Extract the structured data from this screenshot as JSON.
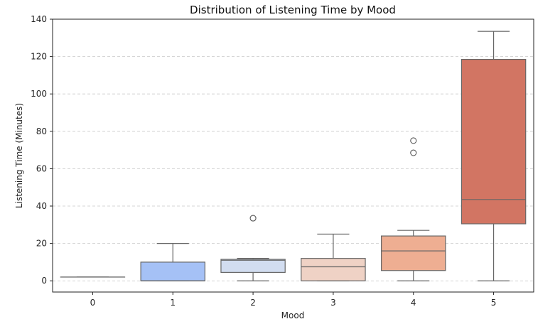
{
  "chart_data": {
    "type": "box",
    "title": "Distribution of Listening Time by Mood",
    "xlabel": "Mood",
    "ylabel": "Listening Time (Minutes)",
    "ylim": [
      -6,
      140
    ],
    "yticks": [
      0,
      20,
      40,
      60,
      80,
      100,
      120,
      140
    ],
    "grid": "y-dashed",
    "categories": [
      "0",
      "1",
      "2",
      "3",
      "4",
      "5"
    ],
    "boxes": [
      {
        "category": "0",
        "whisker_low": 2,
        "q1": 2,
        "median": 2,
        "q3": 2,
        "whisker_high": 2,
        "outliers": [],
        "color": "#4a6ad8"
      },
      {
        "category": "1",
        "whisker_low": 0,
        "q1": 0,
        "median": 0,
        "q3": 10,
        "whisker_high": 20,
        "outliers": [],
        "color": "#a5c1f6"
      },
      {
        "category": "2",
        "whisker_low": 0,
        "q1": 4.5,
        "median": 11,
        "q3": 11.5,
        "whisker_high": 12,
        "outliers": [
          33.5
        ],
        "color": "#d2ddf0"
      },
      {
        "category": "3",
        "whisker_low": 0,
        "q1": 0,
        "median": 7.5,
        "q3": 12,
        "whisker_high": 25,
        "outliers": [],
        "color": "#efd2c5"
      },
      {
        "category": "4",
        "whisker_low": 0,
        "q1": 5.5,
        "median": 16,
        "q3": 24,
        "whisker_high": 27,
        "outliers": [
          68.5,
          75
        ],
        "color": "#eeae92"
      },
      {
        "category": "5",
        "whisker_low": 0,
        "q1": 30.5,
        "median": 43.5,
        "q3": 118.5,
        "whisker_high": 133.5,
        "outliers": [],
        "color": "#d27563"
      }
    ]
  }
}
